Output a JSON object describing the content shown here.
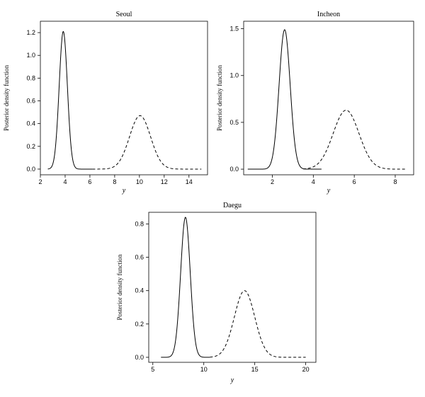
{
  "chart_data": [
    {
      "type": "line",
      "title": "Seoul",
      "xlabel": "y",
      "ylabel": "Posterior density function",
      "xlim": [
        2,
        15.5
      ],
      "ylim": [
        -0.05,
        1.3
      ],
      "xticks": [
        2,
        4,
        6,
        8,
        10,
        12,
        14
      ],
      "yticks": [
        0.0,
        0.2,
        0.4,
        0.6,
        0.8,
        1.0,
        1.2
      ],
      "ytick_labels": [
        "0.0",
        "0.2",
        "0.4",
        "0.6",
        "0.8",
        "1.0",
        "1.2"
      ],
      "grid": false,
      "series": [
        {
          "style": "solid",
          "peak_x": 3.85,
          "peak_y": 1.21,
          "sd": 0.33,
          "x_range": [
            2.6,
            6.2
          ]
        },
        {
          "style": "dashed",
          "peak_x": 10.05,
          "peak_y": 0.47,
          "sd": 0.85,
          "x_range": [
            6.2,
            15.0
          ]
        }
      ]
    },
    {
      "type": "line",
      "title": "Incheon",
      "xlabel": "y",
      "ylabel": "Posterior density function",
      "xlim": [
        0.6,
        8.9
      ],
      "ylim": [
        -0.06,
        1.58
      ],
      "xticks": [
        2,
        4,
        6,
        8
      ],
      "yticks": [
        0.0,
        0.5,
        1.0,
        1.5
      ],
      "ytick_labels": [
        "0.0",
        "0.5",
        "1.0",
        "1.5"
      ],
      "grid": false,
      "series": [
        {
          "style": "solid",
          "peak_x": 2.6,
          "peak_y": 1.49,
          "sd": 0.27,
          "x_range": [
            0.8,
            4.4
          ]
        },
        {
          "style": "dashed",
          "peak_x": 5.6,
          "peak_y": 0.63,
          "sd": 0.63,
          "x_range": [
            3.5,
            8.5
          ]
        }
      ]
    },
    {
      "type": "line",
      "title": "Daegu",
      "xlabel": "y",
      "ylabel": "Posterior density function",
      "xlim": [
        4.6,
        21.0
      ],
      "ylim": [
        -0.03,
        0.87
      ],
      "xticks": [
        5,
        10,
        15,
        20
      ],
      "yticks": [
        0.0,
        0.2,
        0.4,
        0.6,
        0.8
      ],
      "ytick_labels": [
        "0.0",
        "0.2",
        "0.4",
        "0.6",
        "0.8"
      ],
      "grid": false,
      "series": [
        {
          "style": "solid",
          "peak_x": 8.2,
          "peak_y": 0.84,
          "sd": 0.47,
          "x_range": [
            5.8,
            10.6
          ]
        },
        {
          "style": "dashed",
          "peak_x": 14.0,
          "peak_y": 0.4,
          "sd": 1.0,
          "x_range": [
            10.6,
            20.0
          ]
        }
      ]
    }
  ]
}
